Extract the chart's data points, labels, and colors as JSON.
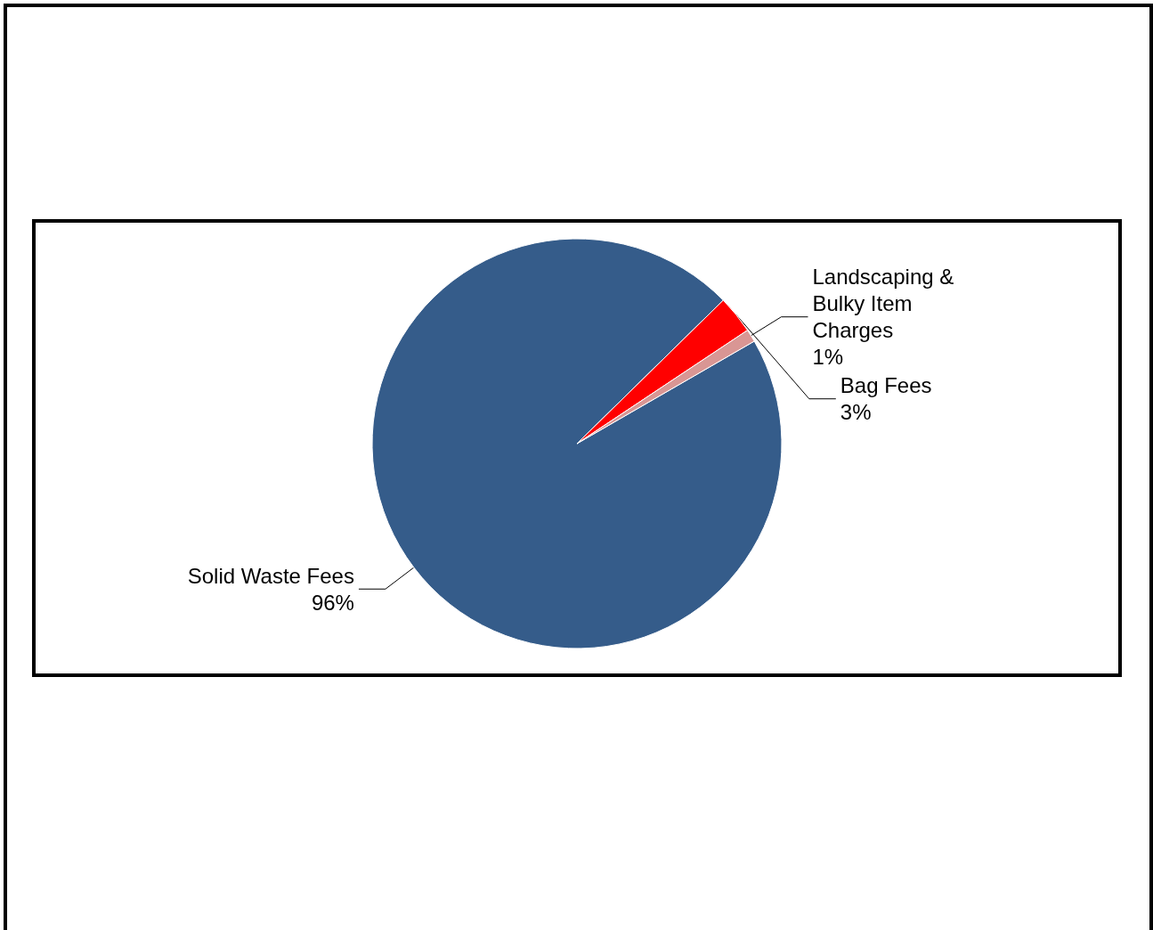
{
  "chart_data": {
    "type": "pie",
    "categories": [
      "Solid Waste Fees",
      "Bag Fees",
      "Landscaping & Bulky Item Charges"
    ],
    "values": [
      96,
      3,
      1
    ],
    "colors": [
      "#355c8a",
      "#ff0000",
      "#d99694"
    ],
    "value_labels": [
      "96%",
      "3%",
      "1%"
    ],
    "legend": false
  }
}
